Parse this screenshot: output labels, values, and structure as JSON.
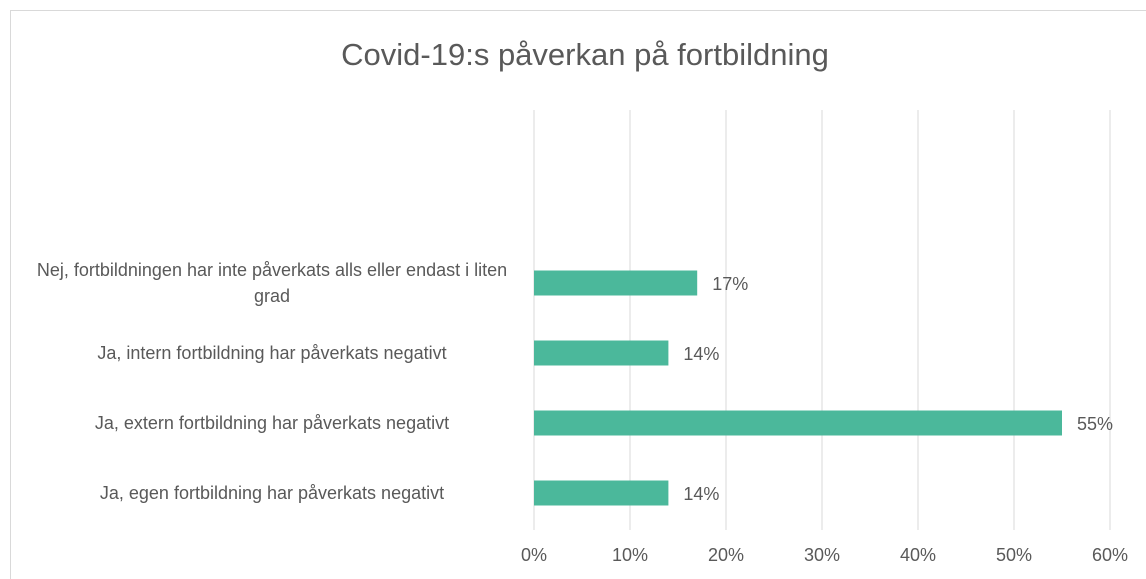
{
  "chart_data": {
    "type": "bar",
    "orientation": "horizontal",
    "title": "Covid-19:s påverkan på fortbildning",
    "categories": [
      "Nej, fortbildningen har inte påverkats alls eller endast i liten grad",
      "Ja, intern fortbildning har påverkats negativt",
      "Ja, extern fortbildning har påverkats negativt",
      "Ja, egen fortbildning har påverkats negativt"
    ],
    "values": [
      17,
      14,
      55,
      14
    ],
    "value_labels": [
      "17%",
      "14%",
      "55%",
      "14%"
    ],
    "color": "#4bb89b",
    "xlim": [
      0,
      60
    ],
    "xticks": [
      {
        "value": 0,
        "label": "0%"
      },
      {
        "value": 10,
        "label": "10%"
      },
      {
        "value": 20,
        "label": "20%"
      },
      {
        "value": 30,
        "label": "30%"
      },
      {
        "value": 40,
        "label": "40%"
      },
      {
        "value": 50,
        "label": "50%"
      },
      {
        "value": 60,
        "label": "60%"
      }
    ],
    "grid": true
  }
}
